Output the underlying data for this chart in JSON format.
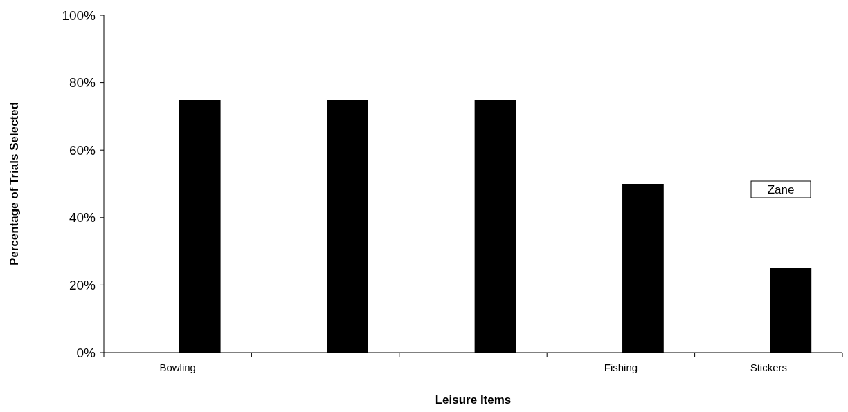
{
  "chart_data": {
    "type": "bar",
    "xlabel": "Leisure Items",
    "ylabel": "Percentage of Trials Selected",
    "categories": [
      "Bowling",
      null,
      null,
      "Fishing",
      "Stickers"
    ],
    "values": [
      75,
      75,
      75,
      50,
      25
    ],
    "color": "#000000",
    "ylim": [
      0,
      100
    ],
    "yticks": [
      {
        "value": 0,
        "label": "0%"
      },
      {
        "value": 20,
        "label": "20%"
      },
      {
        "value": 40,
        "label": "40%"
      },
      {
        "value": 60,
        "label": "60%"
      },
      {
        "value": 80,
        "label": "80%"
      },
      {
        "value": 100,
        "label": "100%"
      }
    ],
    "annotations": [
      "Zane"
    ]
  }
}
